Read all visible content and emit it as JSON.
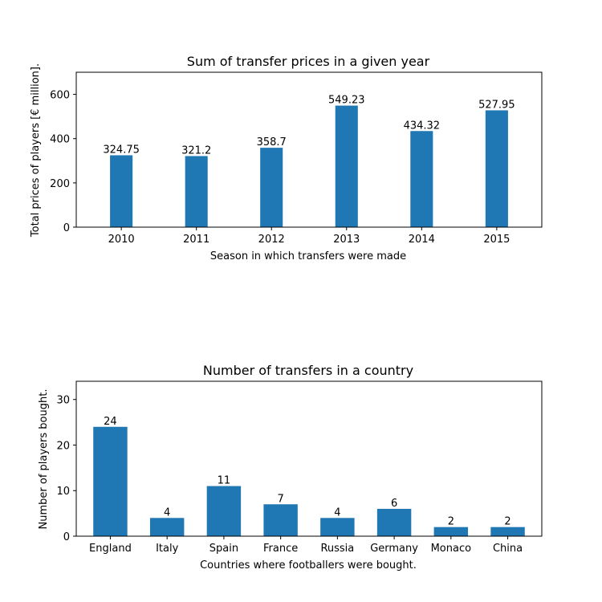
{
  "chart_data": [
    {
      "type": "bar",
      "title": "Sum of transfer prices in a given year",
      "xlabel": "Season in which transfers were made",
      "ylabel": "Total prices of players [€ million].",
      "categories": [
        "2010",
        "2011",
        "2012",
        "2013",
        "2014",
        "2015"
      ],
      "values": [
        324.75,
        321.2,
        358.7,
        549.23,
        434.32,
        527.95
      ],
      "data_labels": [
        "324.75",
        "321.2",
        "358.7",
        "549.23",
        "434.32",
        "527.95"
      ],
      "ylim": [
        0,
        700
      ],
      "yticks": [
        0,
        200,
        400,
        600
      ],
      "bar_color": "#1f77b4",
      "grid": false,
      "legend": "none"
    },
    {
      "type": "bar",
      "title": "Number of transfers in a country",
      "xlabel": "Countries where footballers were bought.",
      "ylabel": "Number of players bought.",
      "categories": [
        "England",
        "Italy",
        "Spain",
        "France",
        "Russia",
        "Germany",
        "Monaco",
        "China"
      ],
      "values": [
        24,
        4,
        11,
        7,
        4,
        6,
        2,
        2
      ],
      "data_labels": [
        "24",
        "4",
        "11",
        "7",
        "4",
        "6",
        "2",
        "2"
      ],
      "ylim": [
        0,
        34
      ],
      "yticks": [
        0,
        10,
        20,
        30
      ],
      "bar_color": "#1f77b4",
      "grid": false,
      "legend": "none"
    }
  ]
}
